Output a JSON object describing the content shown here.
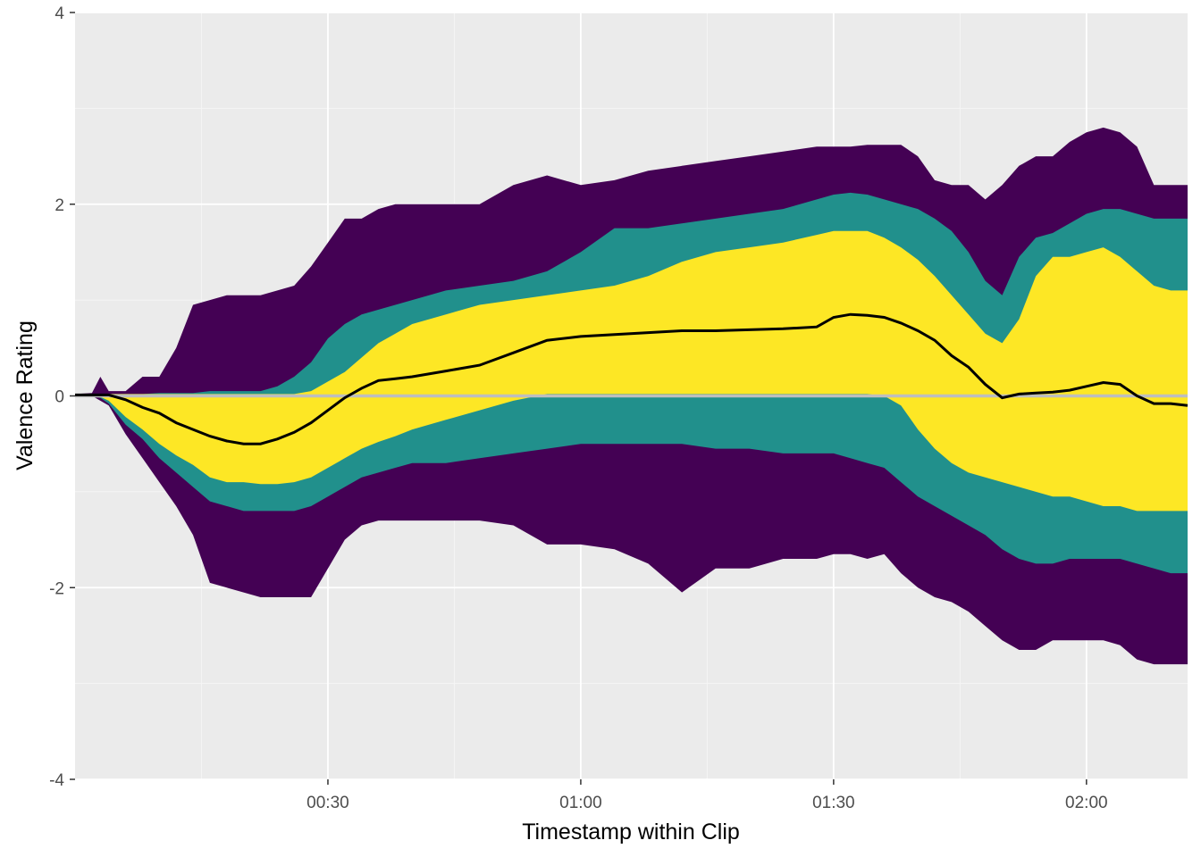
{
  "chart_data": {
    "type": "area",
    "title": "",
    "xlabel": "Timestamp within Clip",
    "ylabel": "Valence Rating",
    "xlim": [
      0,
      132
    ],
    "ylim": [
      -4,
      4
    ],
    "x_ticks": [
      {
        "value": 30,
        "label": "00:30"
      },
      {
        "value": 60,
        "label": "01:00"
      },
      {
        "value": 90,
        "label": "01:30"
      },
      {
        "value": 120,
        "label": "02:00"
      }
    ],
    "x_minor_ticks": [
      15,
      45,
      75,
      105
    ],
    "y_ticks": [
      {
        "value": -4,
        "label": "-4"
      },
      {
        "value": -2,
        "label": "-2"
      },
      {
        "value": 0,
        "label": "0"
      },
      {
        "value": 2,
        "label": "2"
      },
      {
        "value": 4,
        "label": "4"
      }
    ],
    "y_minor_ticks": [
      -3,
      -1,
      1,
      3
    ],
    "reference_line": {
      "y": 0,
      "color": "#bebebe"
    },
    "grid": true,
    "legend": "none",
    "colors": {
      "panel": "#ebebeb",
      "grid_major": "#ffffff",
      "grid_minor": "#f5f5f5",
      "outer_band": "#440154",
      "middle_band": "#21908c",
      "inner_band": "#fde725",
      "median_line": "#000000"
    },
    "x": [
      0,
      2,
      3,
      4,
      6,
      8,
      10,
      12,
      14,
      16,
      18,
      20,
      22,
      24,
      26,
      28,
      30,
      32,
      34,
      36,
      38,
      40,
      44,
      48,
      52,
      56,
      60,
      64,
      68,
      72,
      76,
      80,
      84,
      88,
      90,
      92,
      94,
      96,
      98,
      100,
      102,
      104,
      106,
      108,
      110,
      112,
      114,
      116,
      118,
      120,
      122,
      124,
      126,
      128,
      130,
      132
    ],
    "bands": {
      "outer": {
        "upper": [
          0.02,
          0.03,
          0.2,
          0.05,
          0.05,
          0.2,
          0.2,
          0.5,
          0.95,
          1.0,
          1.05,
          1.05,
          1.05,
          1.1,
          1.15,
          1.35,
          1.6,
          1.85,
          1.85,
          1.95,
          2.0,
          2.0,
          2.0,
          2.0,
          2.2,
          2.3,
          2.2,
          2.25,
          2.35,
          2.4,
          2.45,
          2.5,
          2.55,
          2.6,
          2.6,
          2.6,
          2.62,
          2.62,
          2.62,
          2.5,
          2.25,
          2.2,
          2.2,
          2.05,
          2.2,
          2.4,
          2.5,
          2.5,
          2.65,
          2.75,
          2.8,
          2.75,
          2.6,
          2.2,
          2.2,
          2.2
        ],
        "lower": [
          0.02,
          0.0,
          -0.05,
          -0.1,
          -0.4,
          -0.65,
          -0.9,
          -1.15,
          -1.45,
          -1.95,
          -2.0,
          -2.05,
          -2.1,
          -2.1,
          -2.1,
          -2.1,
          -1.8,
          -1.5,
          -1.35,
          -1.3,
          -1.3,
          -1.3,
          -1.3,
          -1.3,
          -1.35,
          -1.55,
          -1.55,
          -1.6,
          -1.75,
          -2.05,
          -1.8,
          -1.8,
          -1.7,
          -1.7,
          -1.65,
          -1.65,
          -1.7,
          -1.65,
          -1.85,
          -2.0,
          -2.1,
          -2.15,
          -2.25,
          -2.4,
          -2.55,
          -2.65,
          -2.65,
          -2.55,
          -2.55,
          -2.55,
          -2.55,
          -2.6,
          -2.75,
          -2.8,
          -2.8,
          -2.8
        ]
      },
      "middle": {
        "upper": [
          0.02,
          0.02,
          0.02,
          0.02,
          0.02,
          0.02,
          0.03,
          0.03,
          0.03,
          0.05,
          0.05,
          0.05,
          0.05,
          0.1,
          0.2,
          0.35,
          0.6,
          0.75,
          0.85,
          0.9,
          0.95,
          1.0,
          1.1,
          1.15,
          1.2,
          1.3,
          1.5,
          1.75,
          1.75,
          1.8,
          1.85,
          1.9,
          1.95,
          2.05,
          2.1,
          2.12,
          2.1,
          2.05,
          2.0,
          1.95,
          1.85,
          1.72,
          1.5,
          1.2,
          1.05,
          1.45,
          1.65,
          1.7,
          1.8,
          1.9,
          1.95,
          1.95,
          1.9,
          1.85,
          1.85,
          1.85
        ],
        "lower": [
          0.02,
          0.0,
          -0.02,
          -0.08,
          -0.3,
          -0.45,
          -0.65,
          -0.8,
          -0.95,
          -1.1,
          -1.15,
          -1.2,
          -1.2,
          -1.2,
          -1.2,
          -1.15,
          -1.05,
          -0.95,
          -0.85,
          -0.8,
          -0.75,
          -0.7,
          -0.7,
          -0.65,
          -0.6,
          -0.55,
          -0.5,
          -0.5,
          -0.5,
          -0.5,
          -0.55,
          -0.55,
          -0.6,
          -0.6,
          -0.6,
          -0.65,
          -0.7,
          -0.75,
          -0.9,
          -1.05,
          -1.15,
          -1.25,
          -1.35,
          -1.45,
          -1.6,
          -1.7,
          -1.75,
          -1.75,
          -1.7,
          -1.7,
          -1.7,
          -1.7,
          -1.75,
          -1.8,
          -1.85,
          -1.85
        ]
      },
      "inner": {
        "upper": [
          0.02,
          0.02,
          0.02,
          0.02,
          0.02,
          0.02,
          0.02,
          0.02,
          0.02,
          0.02,
          0.02,
          0.02,
          0.02,
          0.02,
          0.02,
          0.05,
          0.15,
          0.25,
          0.4,
          0.55,
          0.65,
          0.75,
          0.85,
          0.95,
          1.0,
          1.05,
          1.1,
          1.15,
          1.25,
          1.4,
          1.5,
          1.55,
          1.6,
          1.68,
          1.72,
          1.72,
          1.72,
          1.65,
          1.55,
          1.42,
          1.25,
          1.05,
          0.85,
          0.65,
          0.55,
          0.8,
          1.25,
          1.45,
          1.45,
          1.5,
          1.55,
          1.45,
          1.3,
          1.15,
          1.1,
          1.1
        ],
        "lower": [
          0.02,
          0.0,
          -0.01,
          -0.05,
          -0.22,
          -0.35,
          -0.5,
          -0.62,
          -0.72,
          -0.85,
          -0.9,
          -0.9,
          -0.92,
          -0.92,
          -0.9,
          -0.85,
          -0.75,
          -0.65,
          -0.55,
          -0.48,
          -0.42,
          -0.35,
          -0.25,
          -0.15,
          -0.05,
          0.02,
          0.02,
          0.02,
          0.02,
          0.02,
          0.02,
          0.02,
          0.02,
          0.02,
          0.02,
          0.02,
          0.02,
          0.0,
          -0.1,
          -0.35,
          -0.55,
          -0.7,
          -0.8,
          -0.85,
          -0.9,
          -0.95,
          -1.0,
          -1.05,
          -1.05,
          -1.1,
          -1.15,
          -1.15,
          -1.2,
          -1.2,
          -1.2,
          -1.2
        ]
      }
    },
    "median": [
      0.01,
      0.01,
      0.01,
      0.01,
      -0.04,
      -0.12,
      -0.18,
      -0.28,
      -0.35,
      -0.42,
      -0.47,
      -0.5,
      -0.5,
      -0.45,
      -0.38,
      -0.28,
      -0.15,
      -0.02,
      0.08,
      0.16,
      0.18,
      0.2,
      0.26,
      0.32,
      0.45,
      0.58,
      0.62,
      0.64,
      0.66,
      0.68,
      0.68,
      0.69,
      0.7,
      0.72,
      0.82,
      0.85,
      0.84,
      0.82,
      0.76,
      0.68,
      0.58,
      0.42,
      0.3,
      0.12,
      -0.02,
      0.02,
      0.03,
      0.04,
      0.06,
      0.1,
      0.14,
      0.12,
      0.0,
      -0.08,
      -0.08,
      -0.1
    ]
  }
}
